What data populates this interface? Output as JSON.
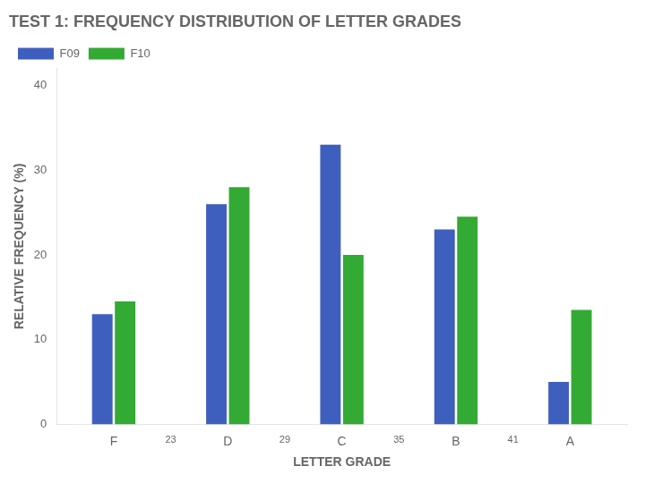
{
  "chart_data": {
    "type": "bar",
    "title": "TEST 1: FREQUENCY DISTRIBUTION OF LETTER GRADES",
    "x_label": "LETTER GRADE",
    "y_label": "RELATIVE FREQUENCY (%)",
    "categories": [
      "F",
      "D",
      "C",
      "B",
      "A"
    ],
    "series": [
      {
        "name": "F09",
        "color": "#3F5FBF",
        "values": [
          13.0,
          26.0,
          33.0,
          23.0,
          5.0
        ]
      },
      {
        "name": "F10",
        "color": "#33AA33",
        "values": [
          14.5,
          28.0,
          20.0,
          24.5,
          13.5
        ]
      }
    ],
    "xticks": [
      {
        "value": 0,
        "label": "F"
      },
      {
        "value": 0.5,
        "label": "23"
      },
      {
        "value": 1,
        "label": "D"
      },
      {
        "value": 1.5,
        "label": "29"
      },
      {
        "value": 2,
        "label": "C"
      },
      {
        "value": 2.5,
        "label": "35"
      },
      {
        "value": 3,
        "label": "B"
      },
      {
        "value": 3.5,
        "label": "41"
      },
      {
        "value": 4,
        "label": "A"
      }
    ],
    "ylim": [
      0,
      42
    ],
    "yticks": [
      0,
      10,
      20,
      30,
      40
    ],
    "grid": false,
    "legend": "upper left"
  }
}
